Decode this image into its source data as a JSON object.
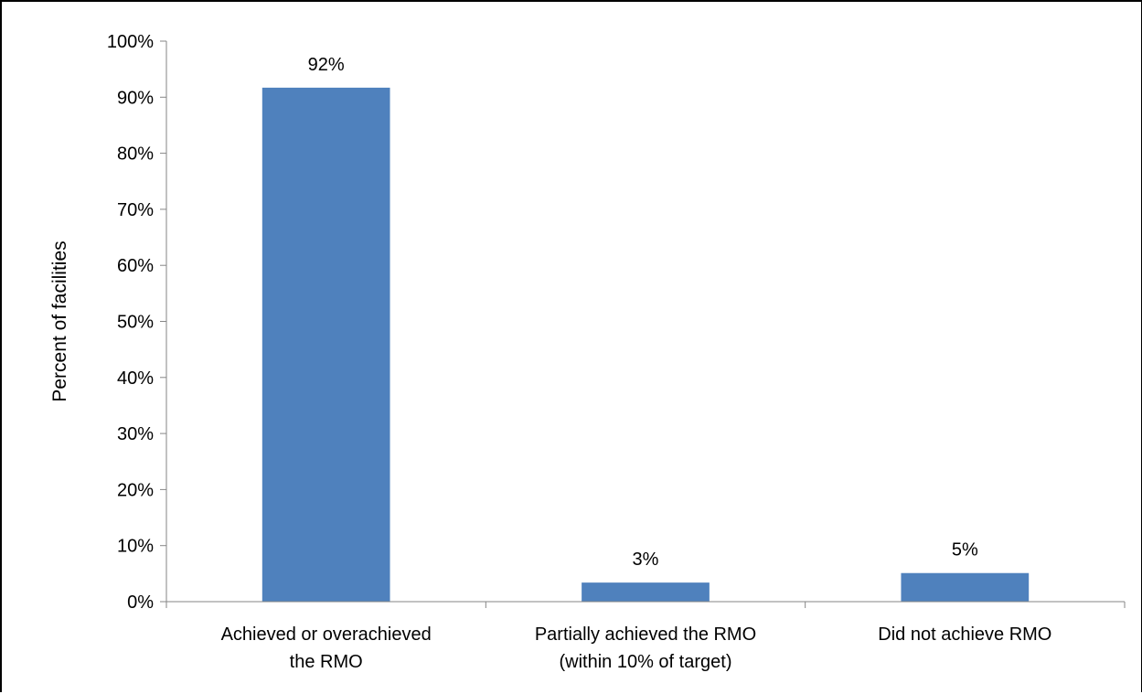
{
  "chart_data": {
    "type": "bar",
    "title": "",
    "xlabel": "",
    "ylabel": "Percent of facilities",
    "ylim": [
      0,
      100
    ],
    "yticks": [
      "0%",
      "10%",
      "20%",
      "30%",
      "40%",
      "50%",
      "60%",
      "70%",
      "80%",
      "90%",
      "100%"
    ],
    "grid": false,
    "legend": "none",
    "bar_color": "#4F81BD",
    "categories": [
      [
        "Achieved or overachieved",
        "the RMO"
      ],
      [
        "Partially achieved the RMO",
        "(within 10% of target)"
      ],
      [
        "Did not achieve RMO"
      ]
    ],
    "values": [
      91.7,
      3.4,
      5.1
    ],
    "data_labels": [
      "92%",
      "3%",
      "5%"
    ]
  }
}
